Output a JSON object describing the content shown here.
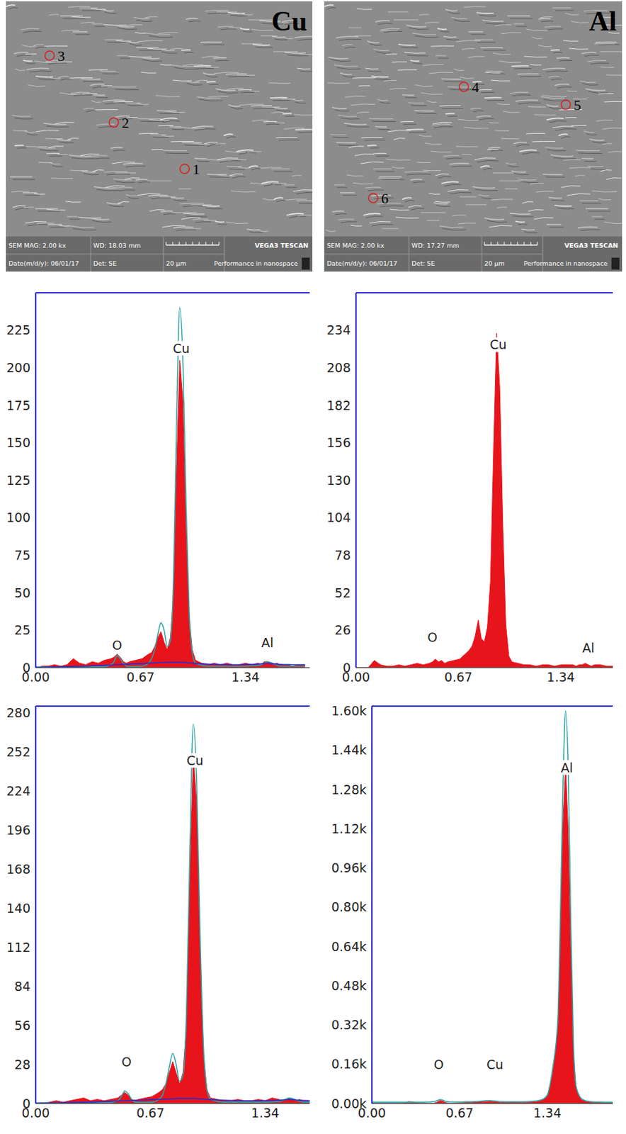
{
  "images": [
    {
      "label": "Cu",
      "markers": [
        "1",
        "2",
        "3"
      ],
      "info": {
        "mag": "SEM MAG: 2.00 kx",
        "wd": "WD: 18.03 mm",
        "brand": "VEGA3 TESCAN",
        "date": "Date(m/d/y): 06/01/17",
        "det": "Det: SE",
        "scale": "20 μm",
        "slogan": "Performance in nanospace"
      }
    },
    {
      "label": "Al",
      "markers": [
        "4",
        "5",
        "6"
      ],
      "info": {
        "mag": "SEM MAG: 2.00 kx",
        "wd": "WD: 17.27 mm",
        "brand": "VEGA3 TESCAN",
        "date": "Date(m/d/y): 06/01/17",
        "det": "Det: SE",
        "scale": "20 μm",
        "slogan": "Performance in nanospace"
      }
    }
  ],
  "chart_data": [
    {
      "type": "area",
      "x": [
        0,
        0.04,
        0.08,
        0.12,
        0.16,
        0.2,
        0.24,
        0.28,
        0.32,
        0.36,
        0.4,
        0.44,
        0.48,
        0.5,
        0.52,
        0.54,
        0.56,
        0.58,
        0.6,
        0.64,
        0.68,
        0.72,
        0.74,
        0.76,
        0.78,
        0.8,
        0.82,
        0.84,
        0.86,
        0.88,
        0.9,
        0.92,
        0.94,
        0.96,
        0.98,
        1,
        1.02,
        1.06,
        1.1,
        1.14,
        1.18,
        1.22,
        1.26,
        1.3,
        1.34,
        1.38,
        1.42,
        1.44,
        1.46,
        1.48,
        1.5,
        1.52,
        1.54,
        1.56,
        1.6,
        1.64,
        1.68,
        1.72
      ],
      "series": [
        {
          "type": "area",
          "color": "#e8141b",
          "values": [
            0,
            1,
            1,
            2,
            1,
            2,
            6,
            3,
            2,
            4,
            3,
            5,
            6,
            7,
            9,
            7,
            4,
            3,
            4,
            5,
            6,
            9,
            10,
            14,
            20,
            24,
            17,
            12,
            20,
            48,
            135,
            205,
            178,
            92,
            34,
            12,
            5,
            3,
            2,
            3,
            2,
            3,
            2,
            2,
            3,
            2,
            3,
            2,
            4,
            4,
            3,
            2,
            3,
            2,
            2,
            1,
            2,
            2
          ]
        },
        {
          "type": "line",
          "color": "#2aa3a8",
          "values": [
            0.5,
            0.5,
            0.5,
            0.5,
            0.5,
            0.5,
            0.5,
            0.5,
            0.5,
            0.5,
            0.5,
            0.8,
            2,
            4,
            8,
            6,
            3,
            1,
            0.8,
            0.8,
            1,
            3,
            6,
            12,
            22,
            30,
            25,
            14,
            18,
            60,
            165,
            240,
            205,
            110,
            38,
            10,
            3,
            1.5,
            1,
            1,
            1,
            1,
            1,
            1,
            1,
            1.2,
            1.5,
            2,
            3,
            4,
            3.5,
            2.5,
            1.5,
            1,
            1,
            1,
            1,
            1
          ]
        },
        {
          "type": "line",
          "color": "#1f2fd6",
          "values": [
            0.2,
            0.3,
            0.4,
            0.5,
            0.6,
            0.7,
            0.8,
            0.9,
            1,
            1.2,
            1.4,
            1.6,
            1.8,
            1.9,
            2,
            2.1,
            2.2,
            2.3,
            2.4,
            2.6,
            2.8,
            3,
            3.1,
            3.2,
            3.3,
            3.4,
            3.5,
            3.6,
            3.6,
            3.6,
            3.6,
            3.6,
            3.5,
            3.4,
            3.2,
            3,
            2.8,
            2.6,
            2.4,
            2.2,
            2.1,
            2,
            2,
            2,
            2.1,
            2.2,
            2.4,
            2.6,
            2.8,
            3,
            2.8,
            2.6,
            2.4,
            2.2,
            2.1,
            2,
            2,
            2
          ]
        }
      ],
      "xlim": [
        0,
        1.75
      ],
      "xticks": [
        {
          "value": 0,
          "label": "0.00"
        },
        0.67,
        1.34
      ],
      "ylim": [
        0,
        250
      ],
      "yticks": [
        0,
        25,
        50,
        75,
        100,
        125,
        150,
        175,
        200,
        225
      ],
      "annotations": [
        {
          "text": "Cu",
          "x": 0.93,
          "y": 213
        },
        {
          "text": "O",
          "x": 0.52,
          "y": 15
        },
        {
          "text": "Al",
          "x": 1.48,
          "y": 17
        }
      ]
    },
    {
      "type": "area",
      "x": [
        0,
        0.04,
        0.08,
        0.12,
        0.16,
        0.2,
        0.24,
        0.28,
        0.32,
        0.36,
        0.4,
        0.44,
        0.48,
        0.5,
        0.52,
        0.54,
        0.56,
        0.58,
        0.6,
        0.64,
        0.68,
        0.72,
        0.74,
        0.76,
        0.78,
        0.8,
        0.82,
        0.84,
        0.86,
        0.88,
        0.9,
        0.92,
        0.94,
        0.96,
        0.98,
        1,
        1.02,
        1.06,
        1.1,
        1.14,
        1.18,
        1.22,
        1.26,
        1.3,
        1.34,
        1.38,
        1.42,
        1.44,
        1.46,
        1.48,
        1.5,
        1.52,
        1.54,
        1.56,
        1.6,
        1.64,
        1.68
      ],
      "series": [
        {
          "type": "area",
          "color": "#e8141b",
          "values": [
            0,
            0,
            0,
            5,
            2,
            1,
            1,
            2,
            1,
            2,
            3,
            2,
            3,
            4,
            6,
            4,
            5,
            3,
            4,
            5,
            6,
            10,
            12,
            15,
            22,
            33,
            20,
            18,
            28,
            60,
            150,
            232,
            195,
            100,
            30,
            8,
            4,
            3,
            2,
            2,
            1,
            2,
            2,
            1,
            2,
            2,
            2,
            1,
            2,
            2,
            3,
            2,
            1,
            2,
            2,
            1,
            1
          ]
        }
      ],
      "xlim": [
        0,
        1.68
      ],
      "xticks": [
        {
          "value": 0,
          "label": "0.00"
        },
        0.67,
        1.34
      ],
      "ylim": [
        0,
        260
      ],
      "yticks": [
        0,
        26,
        52,
        78,
        104,
        130,
        156,
        182,
        208,
        234
      ],
      "annotations": [
        {
          "text": "Cu",
          "x": 0.93,
          "y": 224
        },
        {
          "text": "O",
          "x": 0.5,
          "y": 21
        },
        {
          "text": "Al",
          "x": 1.52,
          "y": 14
        }
      ]
    },
    {
      "type": "area",
      "x": [
        0,
        0.04,
        0.08,
        0.12,
        0.16,
        0.2,
        0.24,
        0.28,
        0.32,
        0.36,
        0.4,
        0.44,
        0.48,
        0.5,
        0.52,
        0.54,
        0.56,
        0.58,
        0.6,
        0.64,
        0.68,
        0.72,
        0.74,
        0.76,
        0.78,
        0.8,
        0.82,
        0.84,
        0.86,
        0.88,
        0.9,
        0.92,
        0.94,
        0.96,
        0.98,
        1,
        1.02,
        1.06,
        1.1,
        1.14,
        1.18,
        1.22,
        1.26,
        1.3,
        1.34,
        1.38,
        1.42,
        1.44,
        1.46,
        1.48,
        1.5,
        1.52,
        1.54,
        1.56,
        1.6
      ],
      "series": [
        {
          "type": "area",
          "color": "#e8141b",
          "values": [
            0,
            0,
            1,
            2,
            1,
            2,
            3,
            4,
            2,
            3,
            2,
            3,
            4,
            6,
            8,
            6,
            3,
            2,
            3,
            4,
            5,
            8,
            10,
            14,
            22,
            30,
            22,
            14,
            22,
            55,
            160,
            250,
            215,
            110,
            35,
            10,
            4,
            3,
            2,
            2,
            3,
            2,
            2,
            3,
            2,
            4,
            3,
            2,
            3,
            4,
            3,
            2,
            3,
            2,
            2
          ]
        },
        {
          "type": "line",
          "color": "#2aa3a8",
          "values": [
            0.5,
            0.5,
            0.5,
            0.5,
            0.5,
            0.5,
            0.5,
            0.5,
            0.5,
            0.5,
            0.5,
            0.8,
            2,
            5,
            9,
            7,
            3,
            1,
            0.8,
            0.8,
            1,
            3,
            6,
            14,
            26,
            36,
            28,
            16,
            20,
            65,
            180,
            272,
            230,
            120,
            40,
            10,
            3,
            1.5,
            1,
            1,
            1,
            1,
            1,
            1,
            1,
            1.2,
            1.5,
            2,
            3,
            4,
            3.5,
            2.5,
            1.5,
            1,
            1
          ]
        },
        {
          "type": "line",
          "color": "#1f2fd6",
          "values": [
            0.2,
            0.3,
            0.4,
            0.5,
            0.6,
            0.7,
            0.8,
            0.9,
            1,
            1.2,
            1.4,
            1.6,
            1.8,
            1.9,
            2,
            2.1,
            2.2,
            2.3,
            2.4,
            2.6,
            2.8,
            3,
            3.1,
            3.2,
            3.3,
            3.4,
            3.5,
            3.6,
            3.6,
            3.6,
            3.6,
            3.6,
            3.5,
            3.4,
            3.2,
            3,
            2.8,
            2.6,
            2.4,
            2.2,
            2.1,
            2,
            2,
            2,
            2.1,
            2.2,
            2.4,
            2.6,
            2.8,
            3,
            2.8,
            2.6,
            2.4,
            2.2,
            2.1
          ]
        }
      ],
      "xlim": [
        0,
        1.6
      ],
      "xticks": [
        {
          "value": 0,
          "label": "0.00"
        },
        0.67,
        1.34
      ],
      "ylim": [
        0,
        285
      ],
      "yticks": [
        0,
        28,
        56,
        84,
        112,
        140,
        168,
        196,
        224,
        252,
        280
      ],
      "annotations": [
        {
          "text": "Cu",
          "x": 0.93,
          "y": 246
        },
        {
          "text": "O",
          "x": 0.53,
          "y": 30
        }
      ]
    },
    {
      "type": "area",
      "x": [
        0,
        0.04,
        0.08,
        0.12,
        0.16,
        0.2,
        0.24,
        0.28,
        0.32,
        0.36,
        0.4,
        0.44,
        0.48,
        0.5,
        0.52,
        0.54,
        0.56,
        0.58,
        0.6,
        0.64,
        0.68,
        0.72,
        0.74,
        0.76,
        0.78,
        0.8,
        0.82,
        0.84,
        0.86,
        0.88,
        0.9,
        0.92,
        0.94,
        0.96,
        0.98,
        1,
        1.02,
        1.06,
        1.1,
        1.14,
        1.18,
        1.22,
        1.26,
        1.3,
        1.34,
        1.38,
        1.42,
        1.44,
        1.46,
        1.48,
        1.5,
        1.52,
        1.54,
        1.56,
        1.6,
        1.64,
        1.68,
        1.72,
        1.76,
        1.8,
        1.84
      ],
      "series": [
        {
          "type": "area",
          "color": "#e8141b",
          "values": [
            0,
            0,
            0,
            0,
            0,
            0,
            0,
            8,
            6,
            0,
            0,
            0,
            2,
            6,
            12,
            10,
            4,
            2,
            0,
            2,
            3,
            4,
            4,
            5,
            6,
            6,
            7,
            7,
            8,
            8,
            9,
            8,
            7,
            6,
            5,
            5,
            5,
            4,
            4,
            5,
            5,
            6,
            8,
            14,
            30,
            120,
            300,
            700,
            1150,
            1380,
            1100,
            600,
            200,
            60,
            15,
            8,
            5,
            4,
            3,
            3,
            2
          ]
        },
        {
          "type": "line",
          "color": "#2aa3a8",
          "values": [
            5,
            5,
            5,
            5,
            5,
            5,
            5,
            5,
            5,
            5,
            5,
            6,
            8,
            12,
            16,
            14,
            9,
            7,
            6,
            6,
            6,
            7,
            7,
            7,
            8,
            8,
            9,
            10,
            11,
            12,
            12,
            11,
            10,
            9,
            8,
            8,
            7,
            7,
            7,
            7,
            8,
            9,
            11,
            16,
            35,
            140,
            340,
            780,
            1300,
            1600,
            1350,
            720,
            240,
            70,
            20,
            10,
            7,
            6,
            6,
            5,
            5
          ]
        }
      ],
      "xlim": [
        0,
        1.84
      ],
      "xticks": [
        {
          "value": 0,
          "label": "0.00"
        },
        0.67,
        1.34
      ],
      "ylim": [
        0,
        1620
      ],
      "yticks": [
        {
          "value": 0,
          "label": "0.00k"
        },
        {
          "value": 160,
          "label": "0.16k"
        },
        {
          "value": 320,
          "label": "0.32k"
        },
        {
          "value": 480,
          "label": "0.48k"
        },
        {
          "value": 640,
          "label": "0.64k"
        },
        {
          "value": 800,
          "label": "0.80k"
        },
        {
          "value": 960,
          "label": "0.96k"
        },
        {
          "value": 1120,
          "label": "1.12k"
        },
        {
          "value": 1280,
          "label": "1.28k"
        },
        {
          "value": 1440,
          "label": "1.44k"
        },
        {
          "value": 1600,
          "label": "1.60k"
        }
      ],
      "annotations": [
        {
          "text": "Al",
          "x": 1.49,
          "y": 1370
        },
        {
          "text": "O",
          "x": 0.51,
          "y": 160
        },
        {
          "text": "Cu",
          "x": 0.94,
          "y": 160
        }
      ]
    }
  ]
}
